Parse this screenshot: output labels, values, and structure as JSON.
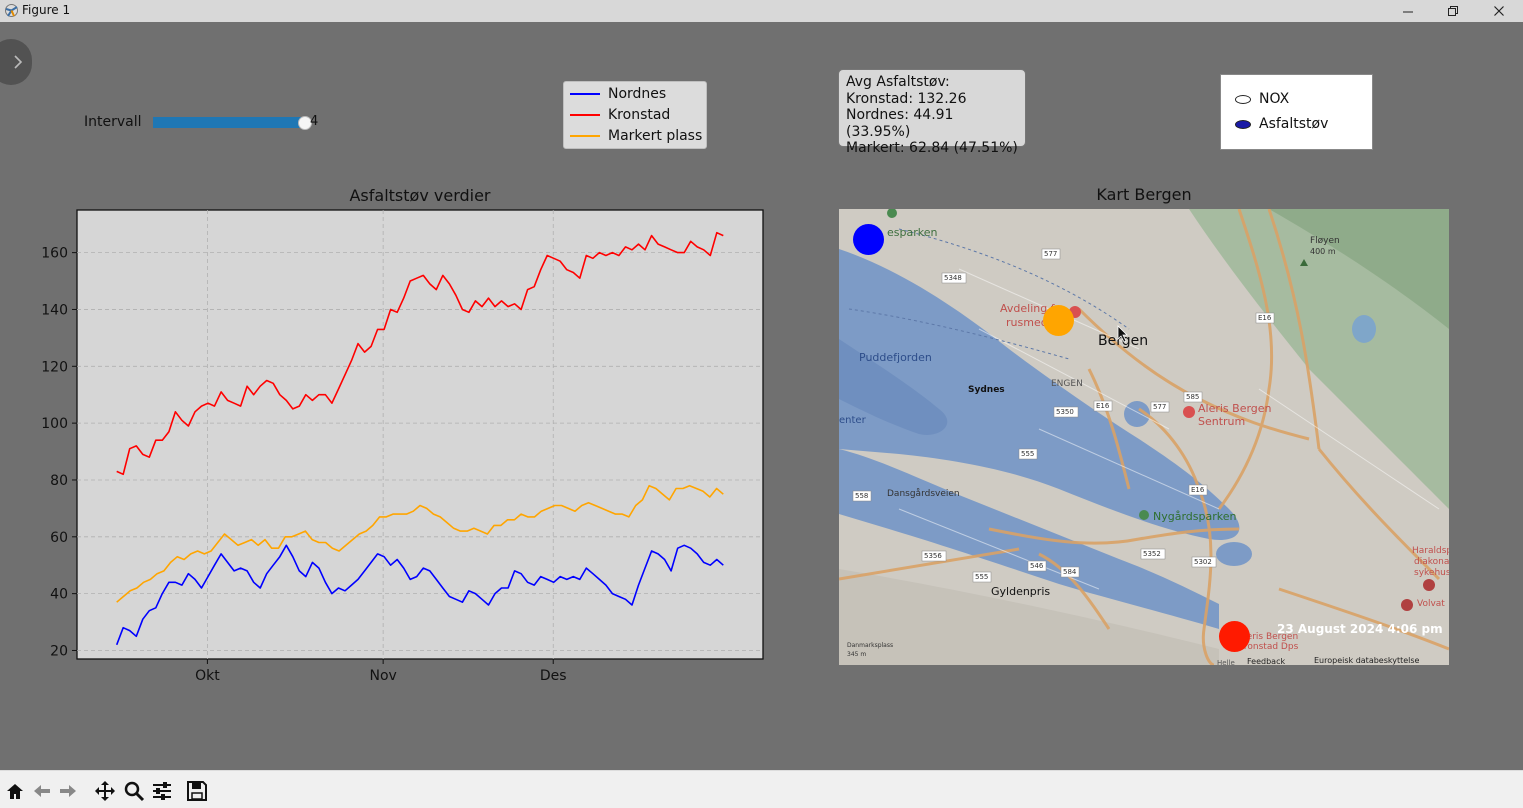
{
  "window": {
    "title": "Figure 1"
  },
  "controls": {
    "slider": {
      "label": "Intervall",
      "value_text": "4",
      "fraction": 0.95
    },
    "legend": [
      {
        "label": "Nordnes",
        "color": "#0000ff"
      },
      {
        "label": "Kronstad",
        "color": "#ff0000"
      },
      {
        "label": "Markert plass",
        "color": "#ffa500"
      }
    ],
    "avg_box": {
      "heading": "Avg Asfaltstøv:",
      "line1": "Kronstad: 132.26",
      "line2": "Nordnes: 44.91 (33.95%)",
      "line3": "Markert: 62.84 (47.51%)"
    },
    "radio": {
      "options": [
        {
          "label": "NOX",
          "selected": false
        },
        {
          "label": "Asfaltstøv",
          "selected": true
        }
      ]
    }
  },
  "chart_data": {
    "type": "line",
    "title": "Asfaltstøv verdier",
    "xlabel": "",
    "ylabel": "",
    "x_ticks": [
      "Okt",
      "Nov",
      "Des"
    ],
    "y_ticks": [
      20,
      40,
      60,
      80,
      100,
      120,
      140,
      160
    ],
    "ylim": [
      17,
      175
    ],
    "grid": true,
    "x_start": "2024-09-15",
    "x_end": "2024-12-31",
    "x_tick_dates": [
      "2024-10-01",
      "2024-11-01",
      "2024-12-01"
    ],
    "series": [
      {
        "name": "Kronstad",
        "color": "#ff0000",
        "values": [
          83,
          82,
          91,
          92,
          89,
          88,
          94,
          94,
          97,
          104,
          101,
          99,
          104,
          106,
          107,
          106,
          111,
          108,
          107,
          106,
          113,
          110,
          113,
          115,
          114,
          110,
          108,
          105,
          106,
          110,
          108,
          110,
          110,
          107,
          112,
          117,
          122,
          128,
          125,
          127,
          133,
          133,
          140,
          139,
          144,
          150,
          151,
          152,
          149,
          147,
          152,
          149,
          145,
          140,
          139,
          143,
          141,
          144,
          141,
          143,
          141,
          142,
          140,
          147,
          148,
          154,
          159,
          158,
          157,
          154,
          153,
          151,
          159,
          158,
          160,
          159,
          160,
          159,
          162,
          161,
          163,
          161,
          166,
          163,
          162,
          161,
          160,
          160,
          164,
          162,
          161,
          159,
          167,
          166
        ]
      },
      {
        "name": "Markert plass",
        "color": "#ffa500",
        "values": [
          37,
          39,
          41,
          42,
          44,
          45,
          47,
          48,
          51,
          53,
          52,
          54,
          55,
          54,
          55,
          58,
          61,
          59,
          57,
          58,
          59,
          57,
          59,
          56,
          56,
          60,
          60,
          61,
          62,
          59,
          58,
          58,
          56,
          55,
          57,
          59,
          61,
          62,
          64,
          67,
          67,
          68,
          68,
          68,
          69,
          71,
          70,
          68,
          67,
          65,
          63,
          62,
          62,
          63,
          62,
          61,
          64,
          64,
          66,
          66,
          68,
          67,
          67,
          69,
          70,
          71,
          71,
          70,
          69,
          71,
          72,
          71,
          70,
          69,
          68,
          68,
          67,
          71,
          73,
          78,
          77,
          75,
          73,
          77,
          77,
          78,
          77,
          76,
          74,
          77,
          75
        ]
      },
      {
        "name": "Nordnes",
        "color": "#0000ff",
        "values": [
          22,
          28,
          27,
          25,
          31,
          34,
          35,
          40,
          44,
          44,
          43,
          47,
          45,
          42,
          46,
          50,
          54,
          51,
          48,
          49,
          48,
          44,
          42,
          47,
          50,
          53,
          57,
          53,
          48,
          46,
          51,
          49,
          44,
          40,
          42,
          41,
          43,
          45,
          48,
          51,
          54,
          53,
          50,
          52,
          49,
          45,
          46,
          49,
          48,
          45,
          42,
          39,
          38,
          37,
          41,
          40,
          38,
          36,
          40,
          42,
          42,
          48,
          47,
          44,
          43,
          46,
          45,
          44,
          46,
          45,
          46,
          45,
          49,
          47,
          45,
          43,
          40,
          39,
          38,
          36,
          43,
          49,
          55,
          54,
          52,
          48,
          56,
          57,
          56,
          54,
          51,
          50,
          52,
          50
        ]
      }
    ]
  },
  "map": {
    "title": "Kart Bergen",
    "labels": {
      "park": "esparken",
      "floyen": "Fløyen",
      "floyen_alt": "400 m",
      "avdeling_1": "Avdeling fo",
      "avdeling_2": "rusmed",
      "bergen": "Bergen",
      "puddefjorden": "Puddefjorden",
      "sydnes": "Sydnes",
      "engen": "ENGEN",
      "aleris_1": "Aleris Bergen",
      "aleris_2": "Sentrum",
      "enter": "enter",
      "dansgard": "Dansgårdsveien",
      "nygard": "Nygårdsparken",
      "gyldenpris": "Gyldenpris",
      "harald_1": "Haraldspl",
      "harald_2": "diakonal",
      "harald_3": "sykehus",
      "volvat": "Volvat",
      "kronstad_1": "Aleris Bergen",
      "kronstad_2": "Kronstad Dps",
      "feedback": "Feedback",
      "personvern": "Europeisk databeskyttelse",
      "danmarks_1": "Danmarksplass",
      "danmarks_2": "345 m",
      "helle": "Helle"
    },
    "road_codes": [
      "5348",
      "577",
      "E16",
      "5350",
      "E16",
      "577",
      "585",
      "555",
      "E16",
      "558",
      "5356",
      "555",
      "546",
      "584",
      "5352",
      "5302"
    ],
    "timestamp": "23 August 2024 4:06 pm",
    "markers": [
      {
        "name": "Nordnes",
        "color": "#0000ff"
      },
      {
        "name": "Markert plass",
        "color": "#ffa500"
      },
      {
        "name": "Kronstad",
        "color": "#ff0000"
      }
    ]
  },
  "toolbar": {
    "buttons": [
      "home-icon",
      "back-icon",
      "forward-icon",
      "pan-icon",
      "zoom-icon",
      "configure-icon",
      "save-icon"
    ]
  }
}
